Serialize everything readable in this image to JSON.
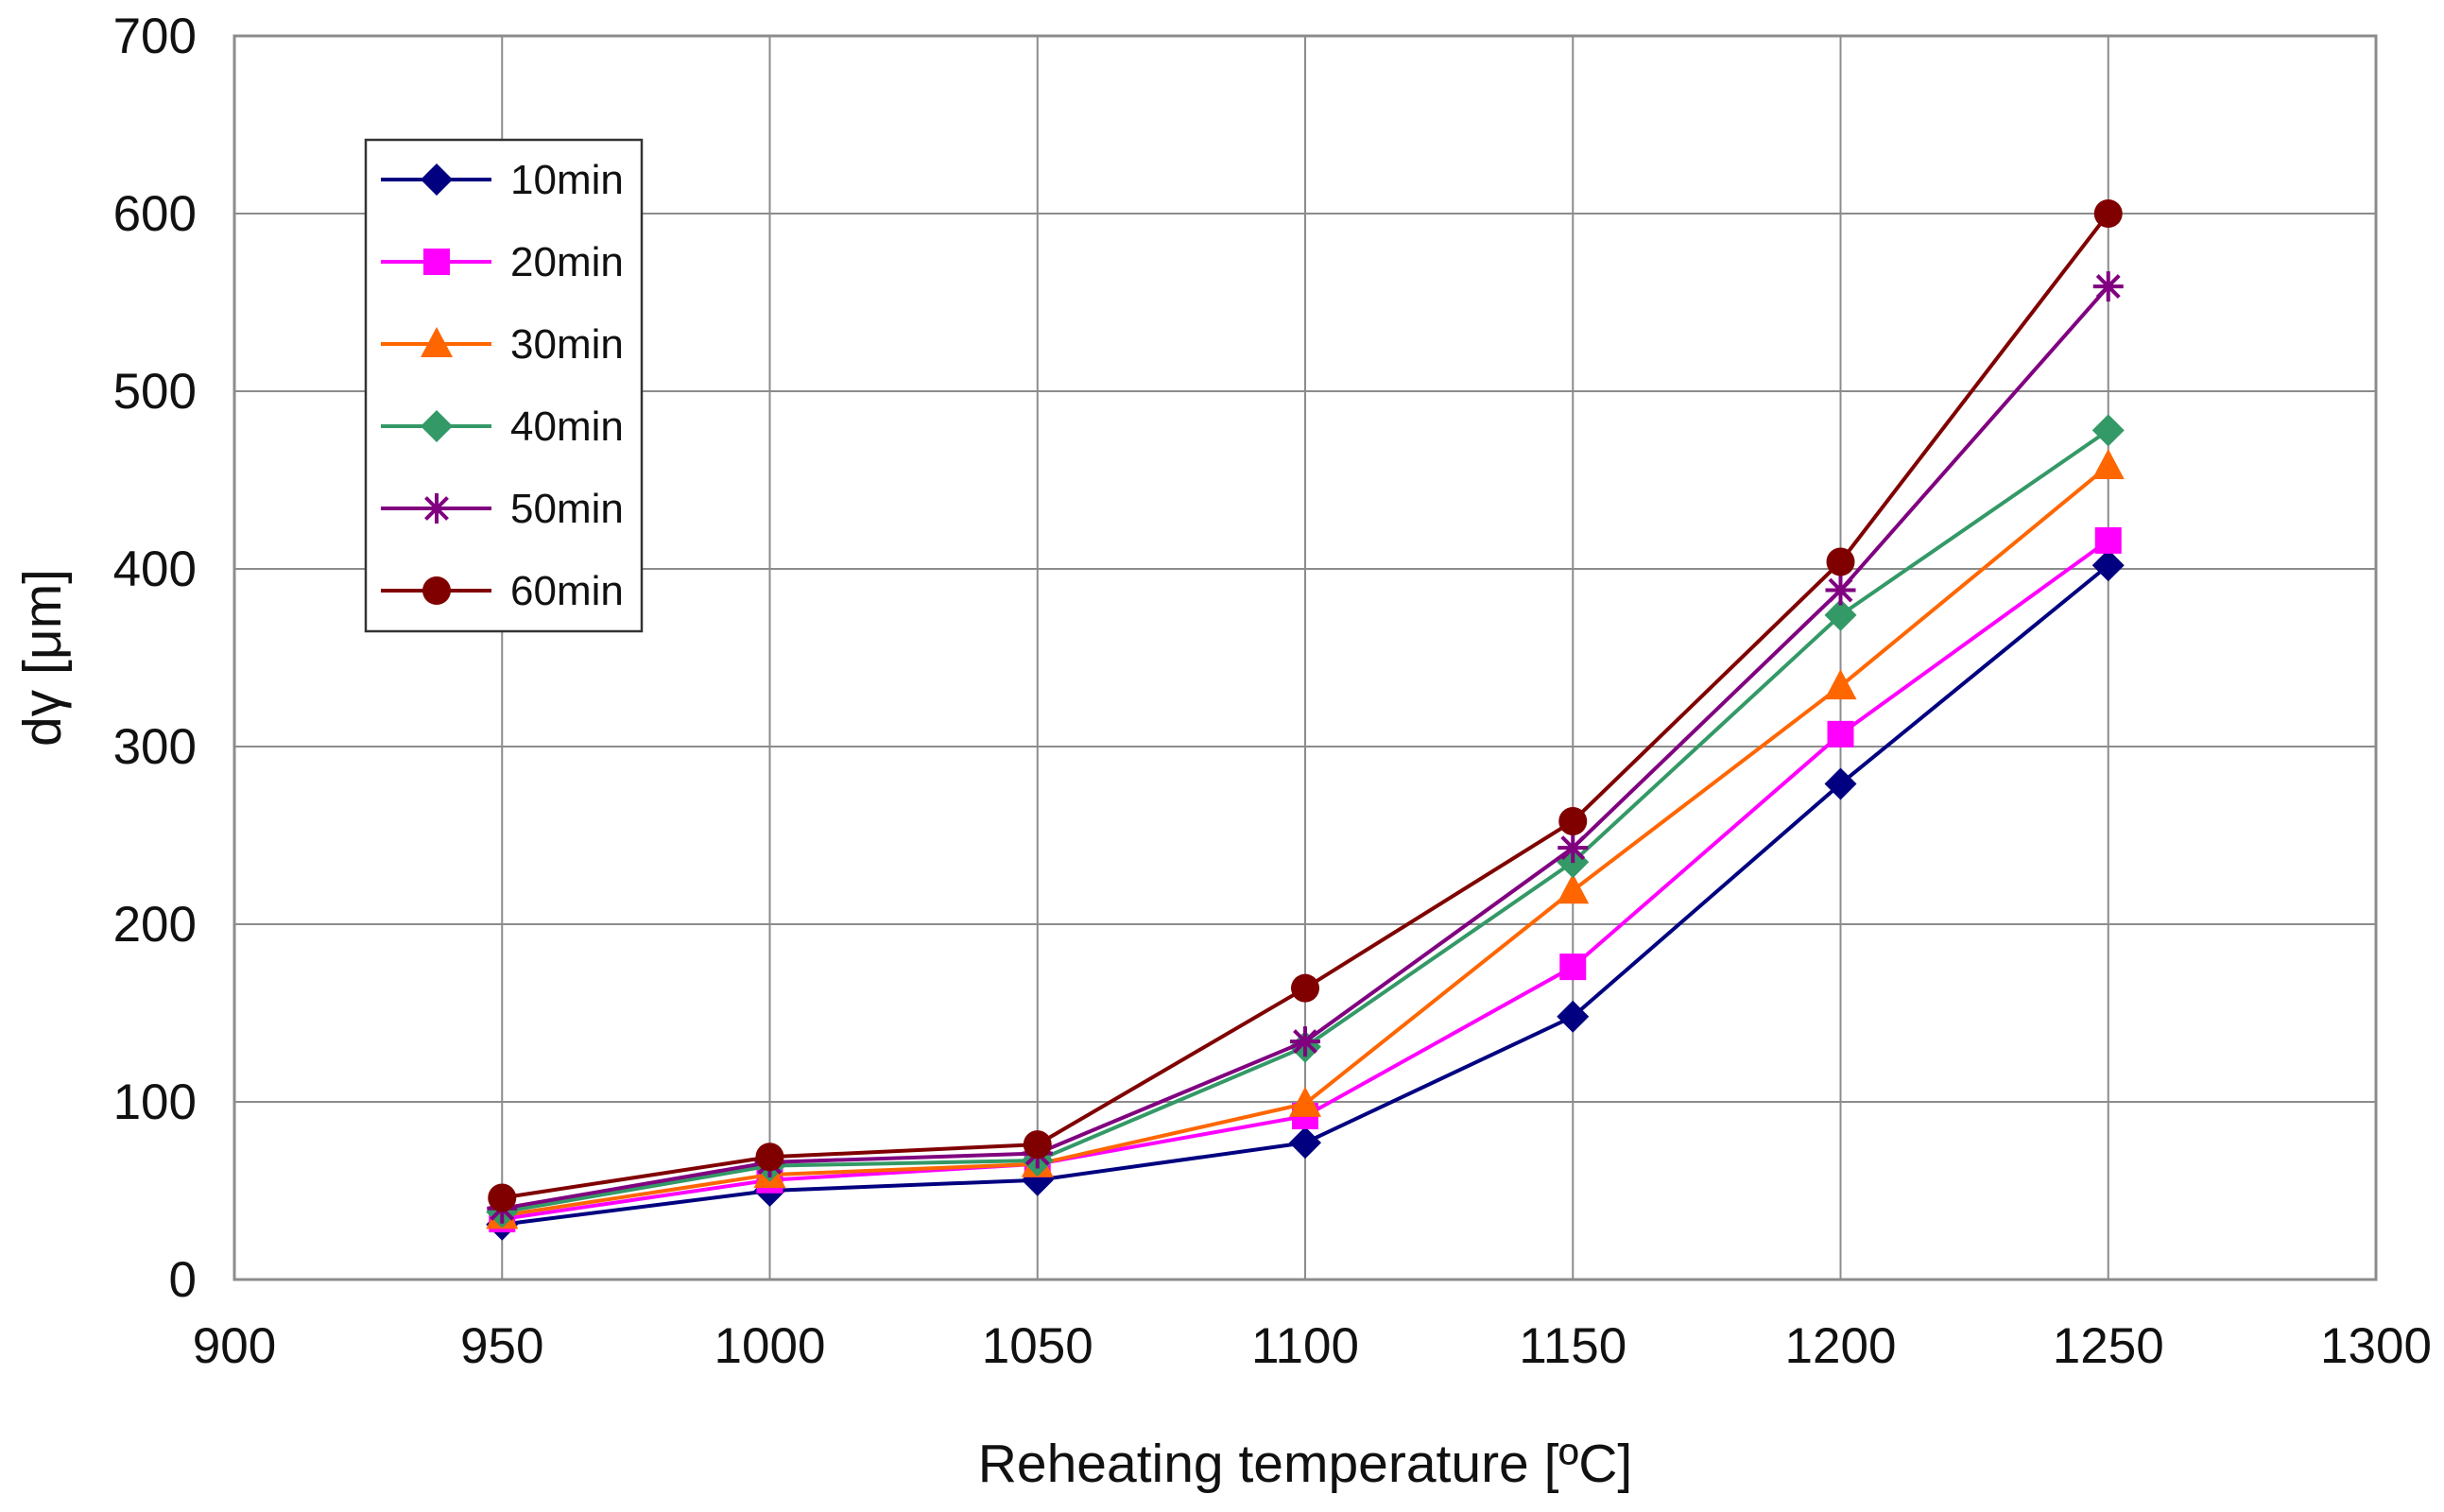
{
  "chart_data": {
    "type": "line",
    "title": "",
    "xlabel": "Reheating temperature  [ºC]",
    "ylabel": "dγ [μm]",
    "xlim": [
      900,
      1300
    ],
    "ylim": [
      0,
      700
    ],
    "xticks": [
      "900",
      "950",
      "1000",
      "1050",
      "1100",
      "1150",
      "1200",
      "1250",
      "1300"
    ],
    "yticks": [
      "0",
      "100",
      "200",
      "300",
      "400",
      "500",
      "600",
      "700"
    ],
    "grid": true,
    "legend_position": "top-left",
    "x": [
      950,
      1000,
      1050,
      1100,
      1150,
      1200,
      1250
    ],
    "series": [
      {
        "name": "10min",
        "color": "#000080",
        "marker": "diamond",
        "values": [
          31,
          50,
          56,
          77,
          148,
          279,
          402
        ]
      },
      {
        "name": "20min",
        "color": "#ff00ff",
        "marker": "square",
        "values": [
          34,
          56,
          65,
          92,
          176,
          307,
          416
        ]
      },
      {
        "name": "30min",
        "color": "#ff6600",
        "marker": "triangle",
        "values": [
          36,
          59,
          65,
          99,
          219,
          334,
          458
        ]
      },
      {
        "name": "40min",
        "color": "#339966",
        "marker": "diamond",
        "values": [
          38,
          64,
          67,
          131,
          235,
          374,
          478
        ]
      },
      {
        "name": "50min",
        "color": "#800080",
        "marker": "star",
        "values": [
          40,
          66,
          71,
          134,
          243,
          388,
          559
        ]
      },
      {
        "name": "60min",
        "color": "#800000",
        "marker": "circle",
        "values": [
          46,
          69,
          76,
          164,
          258,
          404,
          600
        ]
      }
    ]
  }
}
